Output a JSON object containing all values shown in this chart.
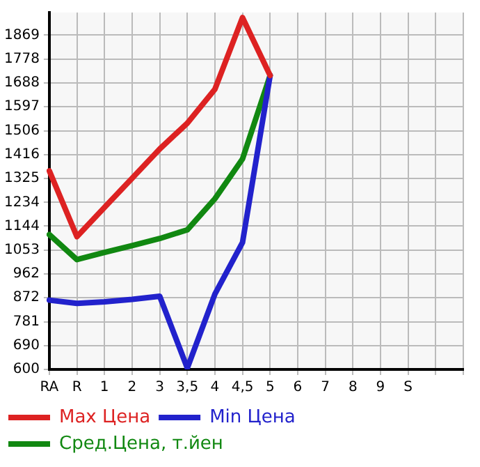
{
  "chart_data": {
    "type": "line",
    "categories": [
      "RA",
      "R",
      "1",
      "2",
      "3",
      "3,5",
      "4",
      "4,5",
      "5",
      "6",
      "7",
      "8",
      "9",
      "S",
      null,
      null
    ],
    "series": [
      {
        "name": "Max Цена",
        "color": "#dd2222",
        "values": [
          1354,
          1104,
          1215,
          1326,
          1437,
          1535,
          1664,
          1936,
          1716,
          null,
          null,
          null,
          null,
          null,
          null,
          null
        ]
      },
      {
        "name": "Min Цена",
        "color": "#2222cc",
        "values": [
          863,
          851,
          857,
          866,
          878,
          605,
          886,
          1082,
          1716,
          null,
          null,
          null,
          null,
          null,
          null,
          null
        ]
      },
      {
        "name": "Сред.Цена, т.йен",
        "color": "#118811",
        "values": [
          1112,
          1017,
          1044,
          1070,
          1097,
          1130,
          1248,
          1399,
          1716,
          null,
          null,
          null,
          null,
          null,
          null,
          null
        ]
      }
    ],
    "ylim": [
      600,
      1955
    ],
    "yticks": [
      600,
      690,
      781,
      872,
      962,
      1053,
      1144,
      1234,
      1325,
      1416,
      1506,
      1597,
      1688,
      1778,
      1869
    ],
    "grid": true,
    "legend": "bottom",
    "marker": "none",
    "line_style": "solid"
  }
}
